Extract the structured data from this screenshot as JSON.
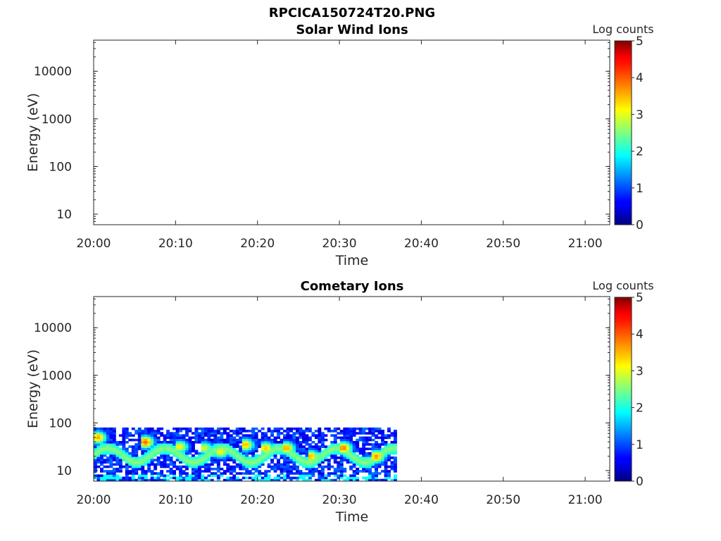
{
  "figure_title": "RPCICA150724T20.PNG",
  "chart_data": [
    {
      "type": "heatmap",
      "title": "Solar Wind Ions",
      "xlabel": "Time",
      "ylabel": "Energy (eV)",
      "y_scale": "log",
      "ylim": [
        6,
        45000
      ],
      "x_ticks": [
        "20:00",
        "20:10",
        "20:20",
        "20:30",
        "20:40",
        "20:50",
        "21:00"
      ],
      "xlim_minutes": [
        0,
        63
      ],
      "y_ticks": [
        "10",
        "100",
        "1000",
        "10000"
      ],
      "colorbar": {
        "label": "Log counts",
        "ticks": [
          "0",
          "1",
          "2",
          "3",
          "4",
          "5"
        ],
        "range": [
          0,
          5
        ],
        "colormap": "jet"
      },
      "data": {
        "description": "no data"
      }
    },
    {
      "type": "heatmap",
      "title": "Cometary Ions",
      "xlabel": "Time",
      "ylabel": "Energy (eV)",
      "y_scale": "log",
      "ylim": [
        6,
        45000
      ],
      "x_ticks": [
        "20:00",
        "20:10",
        "20:20",
        "20:30",
        "20:40",
        "20:50",
        "21:00"
      ],
      "xlim_minutes": [
        0,
        63
      ],
      "y_ticks": [
        "10",
        "100",
        "1000",
        "10000"
      ],
      "colorbar": {
        "label": "Log counts",
        "ticks": [
          "0",
          "1",
          "2",
          "3",
          "4",
          "5"
        ],
        "range": [
          0,
          5
        ],
        "colormap": "jet"
      },
      "data": {
        "time_range_minutes": [
          0,
          37
        ],
        "energy_range_eV": [
          6,
          80
        ],
        "background_level": 1,
        "band_min_energy_eV": 15,
        "band_max_energy_eV": 30,
        "band_level": 2.6,
        "peak_level": 3.8,
        "bursts": [
          {
            "t_minutes": 0.5,
            "energy_eV": 50,
            "peak": 3.6
          },
          {
            "t_minutes": 6.3,
            "energy_eV": 40,
            "peak": 3.9
          },
          {
            "t_minutes": 10.5,
            "energy_eV": 32,
            "peak": 3.2
          },
          {
            "t_minutes": 13.5,
            "energy_eV": 30,
            "peak": 3.0
          },
          {
            "t_minutes": 15.5,
            "energy_eV": 25,
            "peak": 3.2
          },
          {
            "t_minutes": 18.5,
            "energy_eV": 35,
            "peak": 3.5
          },
          {
            "t_minutes": 21,
            "energy_eV": 30,
            "peak": 3.4
          },
          {
            "t_minutes": 23.5,
            "energy_eV": 30,
            "peak": 3.6
          },
          {
            "t_minutes": 26.5,
            "energy_eV": 20,
            "peak": 3.5
          },
          {
            "t_minutes": 30.5,
            "energy_eV": 30,
            "peak": 3.8
          },
          {
            "t_minutes": 34.5,
            "energy_eV": 20,
            "peak": 3.7
          }
        ]
      }
    }
  ]
}
